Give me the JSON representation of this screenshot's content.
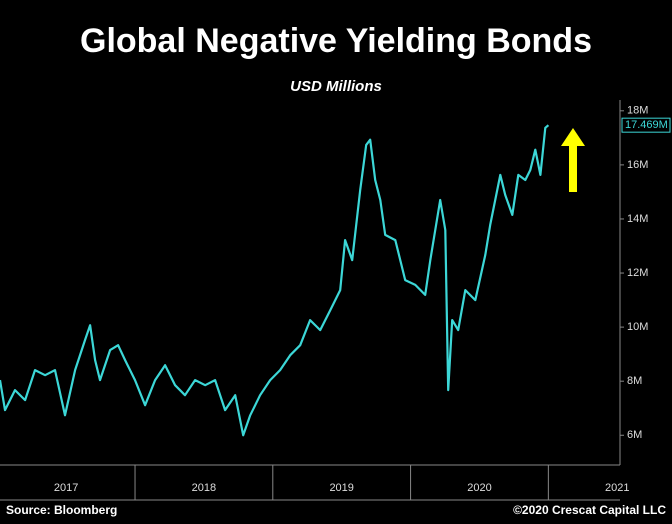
{
  "chart_data": {
    "type": "line",
    "title": "Global Negative Yielding Bonds",
    "subtitle": "USD Millions",
    "source": "Source: Bloomberg",
    "copyright": "©2020 Crescat Capital LLC",
    "x": [
      2017.02,
      2017.056,
      2017.129,
      2017.202,
      2017.274,
      2017.347,
      2017.419,
      2017.492,
      2017.565,
      2017.637,
      2017.674,
      2017.71,
      2017.746,
      2017.819,
      2017.877,
      2017.928,
      2018.0,
      2018.073,
      2018.146,
      2018.218,
      2018.291,
      2018.363,
      2018.436,
      2018.509,
      2018.581,
      2018.654,
      2018.727,
      2018.785,
      2018.836,
      2018.908,
      2018.981,
      2019.053,
      2019.126,
      2019.199,
      2019.271,
      2019.344,
      2019.417,
      2019.489,
      2019.525,
      2019.576,
      2019.634,
      2019.678,
      2019.707,
      2019.743,
      2019.78,
      2019.816,
      2019.889,
      2019.961,
      2020.034,
      2020.106,
      2020.143,
      2020.215,
      2020.252,
      2020.273,
      2020.302,
      2020.346,
      2020.397,
      2020.47,
      2020.542,
      2020.578,
      2020.651,
      2020.687,
      2020.738,
      2020.782,
      2020.833,
      2020.869,
      2020.905,
      2020.942,
      2020.978,
      2021.0
    ],
    "series": [
      {
        "name": "Global Negative Yielding Bonds",
        "color": "#3cd7d7",
        "values": [
          8.04,
          6.93,
          7.67,
          7.3,
          8.41,
          8.22,
          8.41,
          6.74,
          8.41,
          9.52,
          10.07,
          8.78,
          8.04,
          9.15,
          9.33,
          8.78,
          8.04,
          7.11,
          8.04,
          8.59,
          7.85,
          7.48,
          8.04,
          7.85,
          8.04,
          6.93,
          7.48,
          6,
          6.74,
          7.48,
          8.04,
          8.41,
          8.96,
          9.33,
          10.26,
          9.89,
          10.63,
          11.37,
          13.22,
          12.48,
          15.07,
          16.74,
          16.93,
          15.44,
          14.7,
          13.41,
          13.22,
          11.74,
          11.56,
          11.19,
          12.48,
          14.7,
          13.59,
          7.67,
          10.26,
          9.89,
          11.37,
          11.0,
          12.67,
          13.78,
          15.63,
          14.89,
          14.15,
          15.63,
          15.44,
          15.81,
          16.56,
          15.63,
          17.37,
          17.469
        ],
        "value_labels": {
          "69": "17.469M"
        }
      }
    ],
    "xlim": [
      2017.02,
      2021.52
    ],
    "xticks": [
      {
        "value": 2017.5,
        "label": "2017"
      },
      {
        "value": 2018.5,
        "label": "2018"
      },
      {
        "value": 2019.5,
        "label": "2019"
      },
      {
        "value": 2020.5,
        "label": "2020"
      },
      {
        "value": 2021.5,
        "label": "2021"
      }
    ],
    "ylim": [
      4.9,
      18.4
    ],
    "yticks": [
      {
        "value": 6,
        "label": "6M"
      },
      {
        "value": 8,
        "label": "8M"
      },
      {
        "value": 10,
        "label": "10M"
      },
      {
        "value": 12,
        "label": "12M"
      },
      {
        "value": 14,
        "label": "14M"
      },
      {
        "value": 16,
        "label": "16M"
      },
      {
        "value": 18,
        "label": "18M"
      }
    ]
  }
}
